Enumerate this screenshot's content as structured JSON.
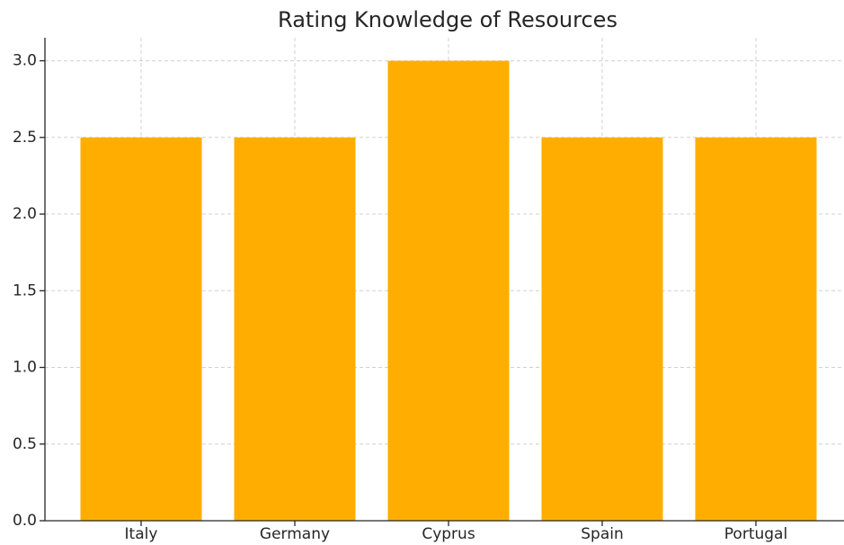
{
  "chart_data": {
    "type": "bar",
    "title": "Rating Knowledge of Resources",
    "categories": [
      "Italy",
      "Germany",
      "Cyprus",
      "Spain",
      "Portugal"
    ],
    "values": [
      2.5,
      2.5,
      3.0,
      2.5,
      2.5
    ],
    "color": "#ffae00",
    "ylim": [
      0,
      3.15
    ],
    "yticks": [
      {
        "value": 0,
        "label": "0.0"
      },
      0.5,
      {
        "value": 1,
        "label": "1.0"
      },
      1.5,
      {
        "value": 2,
        "label": "2.0"
      },
      2.5,
      {
        "value": 3,
        "label": "3.0"
      }
    ],
    "grid": true
  }
}
